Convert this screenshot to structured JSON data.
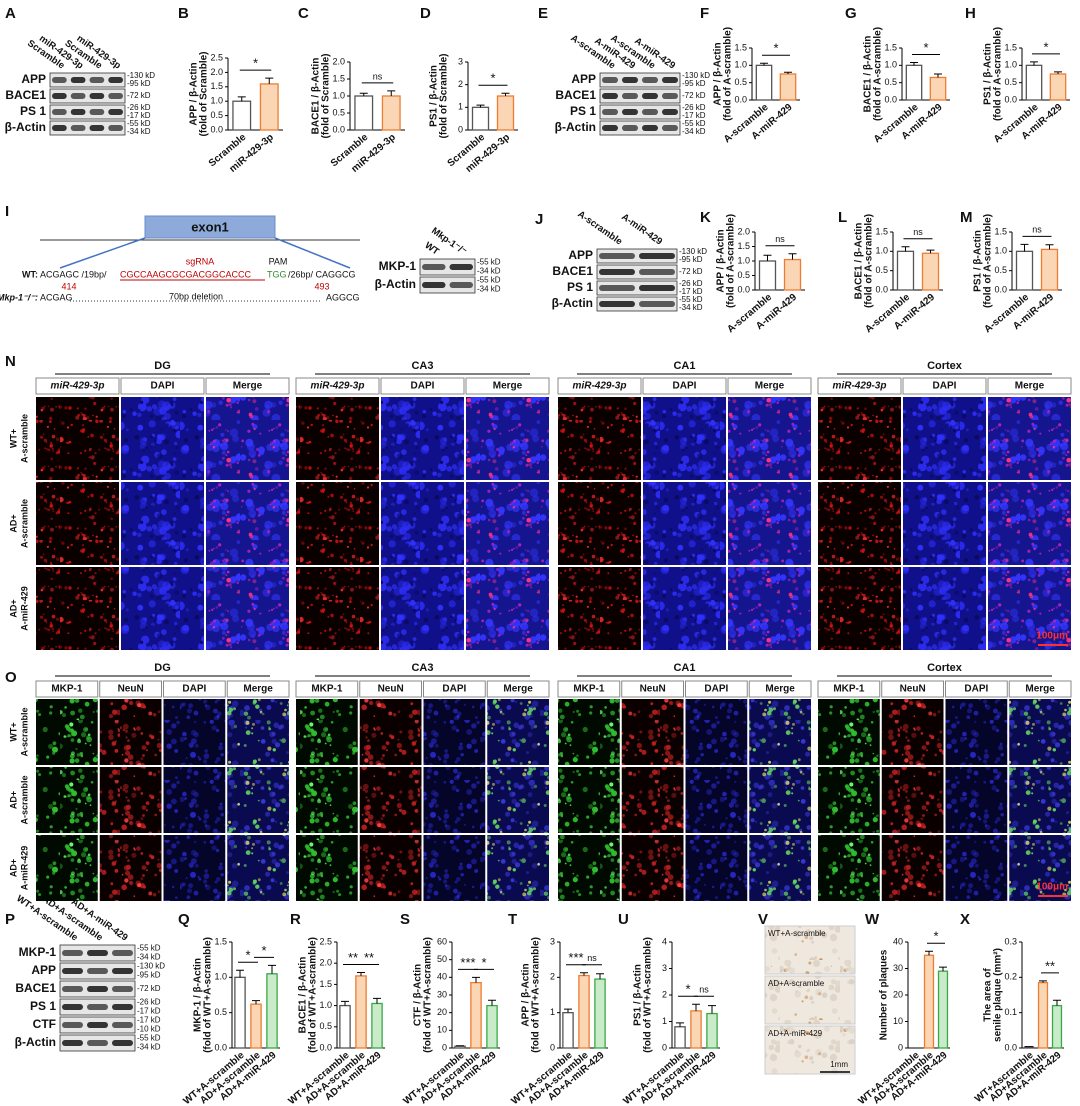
{
  "chart_data": [
    {
      "panel": "B",
      "type": "bar",
      "ylabel": [
        "APP / β-Actin",
        "(fold of Scramble)"
      ],
      "categories": [
        "Scramble",
        "miR-429-3p"
      ],
      "values": [
        1.0,
        1.6
      ],
      "errors": [
        0.15,
        0.2
      ],
      "colors": [
        "#ffffff",
        "#fbd6b5"
      ],
      "edgecolors": [
        "#555555",
        "#ed7d31"
      ],
      "ylim": [
        0,
        2.5
      ],
      "yticks": [
        {
          "value": 0,
          "label": "0.0"
        },
        0.5,
        {
          "value": 1,
          "label": "1.0"
        },
        1.5,
        {
          "value": 2,
          "label": "2.0"
        },
        2.5
      ],
      "significance": [
        "*"
      ]
    },
    {
      "panel": "C",
      "type": "bar",
      "ylabel": [
        "BACE1 / β-Actin",
        "(fold of Scramble)"
      ],
      "categories": [
        "Scramble",
        "miR-429-3p"
      ],
      "values": [
        1.0,
        1.0
      ],
      "errors": [
        0.08,
        0.15
      ],
      "colors": [
        "#ffffff",
        "#fbd6b5"
      ],
      "edgecolors": [
        "#555555",
        "#ed7d31"
      ],
      "ylim": [
        0,
        2
      ],
      "yticks": [
        {
          "value": 0,
          "label": "0.0"
        },
        0.5,
        {
          "value": 1,
          "label": "1.0"
        },
        1.5,
        {
          "value": 2,
          "label": "2.0"
        }
      ],
      "significance": [
        "ns"
      ]
    },
    {
      "panel": "D",
      "type": "bar",
      "ylabel": [
        "PS1 / β-Actin",
        "(fold of Scramble)"
      ],
      "categories": [
        "Scramble",
        "miR-429-3p"
      ],
      "values": [
        1.0,
        1.5
      ],
      "errors": [
        0.1,
        0.12
      ],
      "colors": [
        "#ffffff",
        "#fbd6b5"
      ],
      "edgecolors": [
        "#555555",
        "#ed7d31"
      ],
      "ylim": [
        0,
        3
      ],
      "yticks": [
        0,
        1,
        2,
        3
      ],
      "significance": [
        "*"
      ]
    },
    {
      "panel": "F",
      "type": "bar",
      "ylabel": [
        "APP / β-Actin",
        "(fold of A-scramble)"
      ],
      "categories": [
        "A-scramble",
        "A-miR-429"
      ],
      "values": [
        1.0,
        0.75
      ],
      "errors": [
        0.06,
        0.05
      ],
      "colors": [
        "#ffffff",
        "#fbd6b5"
      ],
      "edgecolors": [
        "#555555",
        "#ed7d31"
      ],
      "ylim": [
        0,
        1.5
      ],
      "yticks": [
        {
          "value": 0,
          "label": "0.0"
        },
        0.5,
        {
          "value": 1,
          "label": "1.0"
        },
        1.5
      ],
      "significance": [
        "*"
      ]
    },
    {
      "panel": "G",
      "type": "bar",
      "ylabel": [
        "BACE1 / β-Actin",
        "(fold of A-scramble)"
      ],
      "categories": [
        "A-scramble",
        "A-miR-429"
      ],
      "values": [
        1.0,
        0.65
      ],
      "errors": [
        0.08,
        0.1
      ],
      "colors": [
        "#ffffff",
        "#fbd6b5"
      ],
      "edgecolors": [
        "#555555",
        "#ed7d31"
      ],
      "ylim": [
        0,
        1.5
      ],
      "yticks": [
        {
          "value": 0,
          "label": "0.0"
        },
        0.5,
        {
          "value": 1,
          "label": "1.0"
        },
        1.5
      ],
      "significance": [
        "*"
      ]
    },
    {
      "panel": "H",
      "type": "bar",
      "ylabel": [
        "PS1 / β-Actin",
        "(fold of A-scramble)"
      ],
      "categories": [
        "A-scramble",
        "A-miR-429"
      ],
      "values": [
        1.0,
        0.75
      ],
      "errors": [
        0.1,
        0.06
      ],
      "colors": [
        "#ffffff",
        "#fbd6b5"
      ],
      "edgecolors": [
        "#555555",
        "#ed7d31"
      ],
      "ylim": [
        0,
        1.5
      ],
      "yticks": [
        {
          "value": 0,
          "label": "0.0"
        },
        0.5,
        {
          "value": 1,
          "label": "1.0"
        },
        1.5
      ],
      "significance": [
        "*"
      ]
    },
    {
      "panel": "K",
      "type": "bar",
      "ylabel": [
        "APP / β-Actin",
        "(fold of A-scramble)"
      ],
      "categories": [
        "A-scramble",
        "A-miR-429"
      ],
      "values": [
        1.0,
        1.05
      ],
      "errors": [
        0.2,
        0.2
      ],
      "colors": [
        "#ffffff",
        "#fbd6b5"
      ],
      "edgecolors": [
        "#555555",
        "#ed7d31"
      ],
      "ylim": [
        0,
        2
      ],
      "yticks": [
        {
          "value": 0,
          "label": "0.0"
        },
        0.5,
        {
          "value": 1,
          "label": "1.0"
        },
        1.5,
        {
          "value": 2,
          "label": "2.0"
        }
      ],
      "significance": [
        "ns"
      ]
    },
    {
      "panel": "L",
      "type": "bar",
      "ylabel": [
        "BACE1 / β-Actin",
        "(fold of A-scramble)"
      ],
      "categories": [
        "A-scramble",
        "A-miR-429"
      ],
      "values": [
        1.0,
        0.95
      ],
      "errors": [
        0.12,
        0.08
      ],
      "colors": [
        "#ffffff",
        "#fbd6b5"
      ],
      "edgecolors": [
        "#555555",
        "#ed7d31"
      ],
      "ylim": [
        0,
        1.5
      ],
      "yticks": [
        {
          "value": 0,
          "label": "0.0"
        },
        0.5,
        {
          "value": 1,
          "label": "1.0"
        },
        1.5
      ],
      "significance": [
        "ns"
      ]
    },
    {
      "panel": "M",
      "type": "bar",
      "ylabel": [
        "PS1 / β-Actin",
        "(fold of A-scramble)"
      ],
      "categories": [
        "A-scramble",
        "A-miR-429"
      ],
      "values": [
        1.0,
        1.05
      ],
      "errors": [
        0.18,
        0.12
      ],
      "colors": [
        "#ffffff",
        "#fbd6b5"
      ],
      "edgecolors": [
        "#555555",
        "#ed7d31"
      ],
      "ylim": [
        0,
        1.5
      ],
      "yticks": [
        {
          "value": 0,
          "label": "0.0"
        },
        0.5,
        {
          "value": 1,
          "label": "1.0"
        },
        1.5
      ],
      "significance": [
        "ns"
      ]
    },
    {
      "panel": "Q",
      "type": "bar",
      "ylabel": [
        "MKP-1 / β-Actin",
        "(fold of WT+A-scramble)"
      ],
      "categories": [
        "WT+A-scramble",
        "AD+A-scramble",
        "AD+A-miR-429"
      ],
      "values": [
        1.0,
        0.62,
        1.05
      ],
      "errors": [
        0.1,
        0.05,
        0.12
      ],
      "colors": [
        "#ffffff",
        "#fbd6b5",
        "#c9ebc9"
      ],
      "edgecolors": [
        "#555555",
        "#ed7d31",
        "#3aa845"
      ],
      "ylim": [
        0,
        1.5
      ],
      "yticks": [
        {
          "value": 0,
          "label": "0.0"
        },
        0.5,
        {
          "value": 1,
          "label": "1.0"
        },
        1.5
      ],
      "significance": [
        "*",
        "*"
      ]
    },
    {
      "panel": "R",
      "type": "bar",
      "ylabel": [
        "BACE1 / β-Actin",
        "(fold of WT+A-scramble)"
      ],
      "categories": [
        "WT+A-scramble",
        "AD+A-scramble",
        "AD+A-miR-429"
      ],
      "values": [
        1.0,
        1.7,
        1.05
      ],
      "errors": [
        0.1,
        0.08,
        0.12
      ],
      "colors": [
        "#ffffff",
        "#fbd6b5",
        "#c9ebc9"
      ],
      "edgecolors": [
        "#555555",
        "#ed7d31",
        "#3aa845"
      ],
      "ylim": [
        0,
        2.5
      ],
      "yticks": [
        {
          "value": 0,
          "label": "0.0"
        },
        0.5,
        {
          "value": 1,
          "label": "1.0"
        },
        1.5,
        {
          "value": 2,
          "label": "2.0"
        },
        2.5
      ],
      "significance": [
        "**",
        "**"
      ]
    },
    {
      "panel": "S",
      "type": "bar",
      "ylabel": [
        "CTF / β-Actin",
        "(fold of WT+A-scramble)"
      ],
      "categories": [
        "WT+A-scramble",
        "AD+A-scramble",
        "AD+A-miR-429"
      ],
      "values": [
        1,
        37,
        24
      ],
      "errors": [
        0.3,
        3,
        3
      ],
      "colors": [
        "#ffffff",
        "#fbd6b5",
        "#c9ebc9"
      ],
      "edgecolors": [
        "#555555",
        "#ed7d31",
        "#3aa845"
      ],
      "ylim": [
        0,
        60
      ],
      "yticks": [
        0,
        10,
        20,
        30,
        40,
        50,
        60
      ],
      "significance": [
        "***",
        "*"
      ]
    },
    {
      "panel": "T",
      "type": "bar",
      "ylabel": [
        "APP / β-Actin",
        "(fold of WT+A-scramble)"
      ],
      "categories": [
        "WT+A-scramble",
        "AD+A-scramble",
        "AD+A-miR-429"
      ],
      "values": [
        1,
        2.05,
        1.95
      ],
      "errors": [
        0.1,
        0.08,
        0.15
      ],
      "colors": [
        "#ffffff",
        "#fbd6b5",
        "#c9ebc9"
      ],
      "edgecolors": [
        "#555555",
        "#ed7d31",
        "#3aa845"
      ],
      "ylim": [
        0,
        3
      ],
      "yticks": [
        0,
        1,
        2,
        3
      ],
      "significance": [
        "***",
        "ns"
      ]
    },
    {
      "panel": "U",
      "type": "bar",
      "ylabel": [
        "PS1 / β-Actin",
        "(fold of WT+A-scramble)"
      ],
      "categories": [
        "WT+A-scramble",
        "AD+A-scramble",
        "AD+A-miR-429"
      ],
      "values": [
        0.8,
        1.4,
        1.3
      ],
      "errors": [
        0.15,
        0.25,
        0.3
      ],
      "colors": [
        "#ffffff",
        "#fbd6b5",
        "#c9ebc9"
      ],
      "edgecolors": [
        "#555555",
        "#ed7d31",
        "#3aa845"
      ],
      "ylim": [
        0,
        4
      ],
      "yticks": [
        0,
        1,
        2,
        3,
        4
      ],
      "significance": [
        "*",
        "ns"
      ]
    },
    {
      "panel": "W",
      "type": "bar",
      "ylabel": [
        "Number of plaques"
      ],
      "categories": [
        "WT+A-scramble",
        "AD+A-scramble",
        "AD+A-miR-429"
      ],
      "values": [
        0,
        35,
        29
      ],
      "errors": [
        0,
        1.5,
        1.5
      ],
      "colors": [
        "#ffffff",
        "#fbd6b5",
        "#c9ebc9"
      ],
      "edgecolors": [
        "#555555",
        "#ed7d31",
        "#3aa845"
      ],
      "ylim": [
        0,
        40
      ],
      "yticks": [
        0,
        10,
        20,
        30,
        40
      ],
      "significance": [
        null,
        "*"
      ]
    },
    {
      "panel": "X",
      "type": "bar",
      "ylabel": [
        "The area of",
        "senile plaque (mm²)"
      ],
      "categories": [
        "WT+Ascramble",
        "AD+Ascramble",
        "AD+A-miR-429"
      ],
      "values": [
        0.003,
        0.185,
        0.12
      ],
      "errors": [
        0.001,
        0.005,
        0.015
      ],
      "colors": [
        "#ffffff",
        "#fbd6b5",
        "#c9ebc9"
      ],
      "edgecolors": [
        "#555555",
        "#ed7d31",
        "#3aa845"
      ],
      "ylim": [
        0,
        0.3
      ],
      "yticks": [
        {
          "value": 0,
          "label": "0.0"
        },
        0.1,
        0.2,
        0.3
      ],
      "significance": [
        null,
        "**"
      ]
    }
  ],
  "blots": [
    {
      "panel": "A",
      "lanes": [
        "Scramble",
        "miR-429-3p",
        "Scramble",
        "miR-429-3p"
      ],
      "bands": [
        {
          "name": "APP",
          "markers": [
            "-130 kD",
            "-95 kD"
          ]
        },
        {
          "name": "BACE1",
          "markers": [
            "-72 kD"
          ]
        },
        {
          "name": "PS 1",
          "markers": [
            "-26 kD",
            "-17 kD"
          ]
        },
        {
          "name": "β-Actin",
          "markers": [
            "-55 kD",
            "-34 kD"
          ]
        }
      ]
    },
    {
      "panel": "E",
      "lanes": [
        "A-scramble",
        "A-miR-429",
        "A-scramble",
        "A-miR-429"
      ],
      "bands": [
        {
          "name": "APP",
          "markers": [
            "-130 kD",
            "-95 kD"
          ]
        },
        {
          "name": "BACE1",
          "markers": [
            "-72 kD"
          ]
        },
        {
          "name": "PS 1",
          "markers": [
            "-26 kD",
            "-17 kD"
          ]
        },
        {
          "name": "β-Actin",
          "markers": [
            "-55 kD",
            "-34 kD"
          ]
        }
      ]
    },
    {
      "panel": "J",
      "lanes": [
        "A-scramble",
        "A-miR-429"
      ],
      "bands": [
        {
          "name": "APP",
          "markers": [
            "-130 kD",
            "-95 kD"
          ]
        },
        {
          "name": "BACE1",
          "markers": [
            "-72 kD"
          ]
        },
        {
          "name": "PS 1",
          "markers": [
            "-26 kD",
            "-17 kD"
          ]
        },
        {
          "name": "β-Actin",
          "markers": [
            "-55 kD",
            "-34 kD"
          ]
        }
      ]
    },
    {
      "panel": "P",
      "lanes": [
        "WT+A-scramble",
        "AD+A-scramble",
        "AD+A-miR-429"
      ],
      "bands": [
        {
          "name": "MKP-1",
          "markers": [
            "-55 kD",
            "-34 kD"
          ]
        },
        {
          "name": "APP",
          "markers": [
            "-130 kD",
            "-95 kD"
          ]
        },
        {
          "name": "BACE1",
          "markers": [
            "-72 kD"
          ]
        },
        {
          "name": "PS 1",
          "markers": [
            "-26 kD",
            "-17 kD"
          ]
        },
        {
          "name": "CTF",
          "markers": [
            "-17 kD",
            "-10 kD"
          ]
        },
        {
          "name": "β-Actin",
          "markers": [
            "-55 kD",
            "-34 kD"
          ]
        }
      ]
    }
  ],
  "panel_I": {
    "panel": "I",
    "exon": "exon1",
    "sgrna": "sgRNA",
    "pam": "PAM",
    "wt": {
      "label": "WT:",
      "left": "ACGAGC /19bp/",
      "target": "CGCCAAGCGCGACGGCACCC",
      "pam": "TGG",
      "right": "/26bp/ CAGGCG"
    },
    "positions": [
      414,
      493
    ],
    "ko": {
      "label": "Mkp-1⁻/⁻:",
      "left": "ACGAG",
      "deletion": "70bp deletion",
      "right": "AGGCG"
    },
    "blot": {
      "lanes": [
        "WT",
        "Mkp-1⁻/⁻"
      ],
      "bands": [
        {
          "name": "MKP-1",
          "markers": [
            "-55 kD",
            "-34 kD"
          ]
        },
        {
          "name": "β-Actin",
          "markers": [
            "-55 kD",
            "-34 kD"
          ]
        }
      ]
    }
  },
  "panel_N": {
    "panel": "N",
    "regions": [
      {
        "name": "DG",
        "columns": [
          "miR-429-3p",
          "DAPI",
          "Merge"
        ]
      },
      {
        "name": "CA3",
        "columns": [
          "miR-429-3p",
          "DAPI",
          "Merge"
        ]
      },
      {
        "name": "CA1",
        "columns": [
          "miR-429-3p",
          "DAPI",
          "Merge"
        ]
      },
      {
        "name": "Cortex",
        "columns": [
          "miR-429-3p",
          "DAPI",
          "Merge"
        ]
      }
    ],
    "rows": [
      [
        "WT+",
        "A-scramble"
      ],
      [
        "AD+",
        "A-scramble"
      ],
      [
        "AD+",
        "A-miR-429"
      ]
    ],
    "scale": "100μm"
  },
  "panel_O": {
    "panel": "O",
    "regions": [
      {
        "name": "DG",
        "columns": [
          "MKP-1",
          "NeuN",
          "DAPI",
          "Merge"
        ]
      },
      {
        "name": "CA3",
        "columns": [
          "MKP-1",
          "NeuN",
          "DAPI",
          "Merge"
        ]
      },
      {
        "name": "CA1",
        "columns": [
          "MKP-1",
          "NeuN",
          "DAPI",
          "Merge"
        ]
      },
      {
        "name": "Cortex",
        "columns": [
          "MKP-1",
          "NeuN",
          "DAPI",
          "Merge"
        ]
      }
    ],
    "rows": [
      [
        "WT+",
        "A-scramble"
      ],
      [
        "AD+",
        "A-scramble"
      ],
      [
        "AD+",
        "A-miR-429"
      ]
    ],
    "scale": "100μm"
  },
  "panel_V": {
    "panel": "V",
    "images": [
      "WT+A-scramble",
      "AD+A-scramble",
      "AD+A-miR-429"
    ],
    "scale": "1mm"
  }
}
